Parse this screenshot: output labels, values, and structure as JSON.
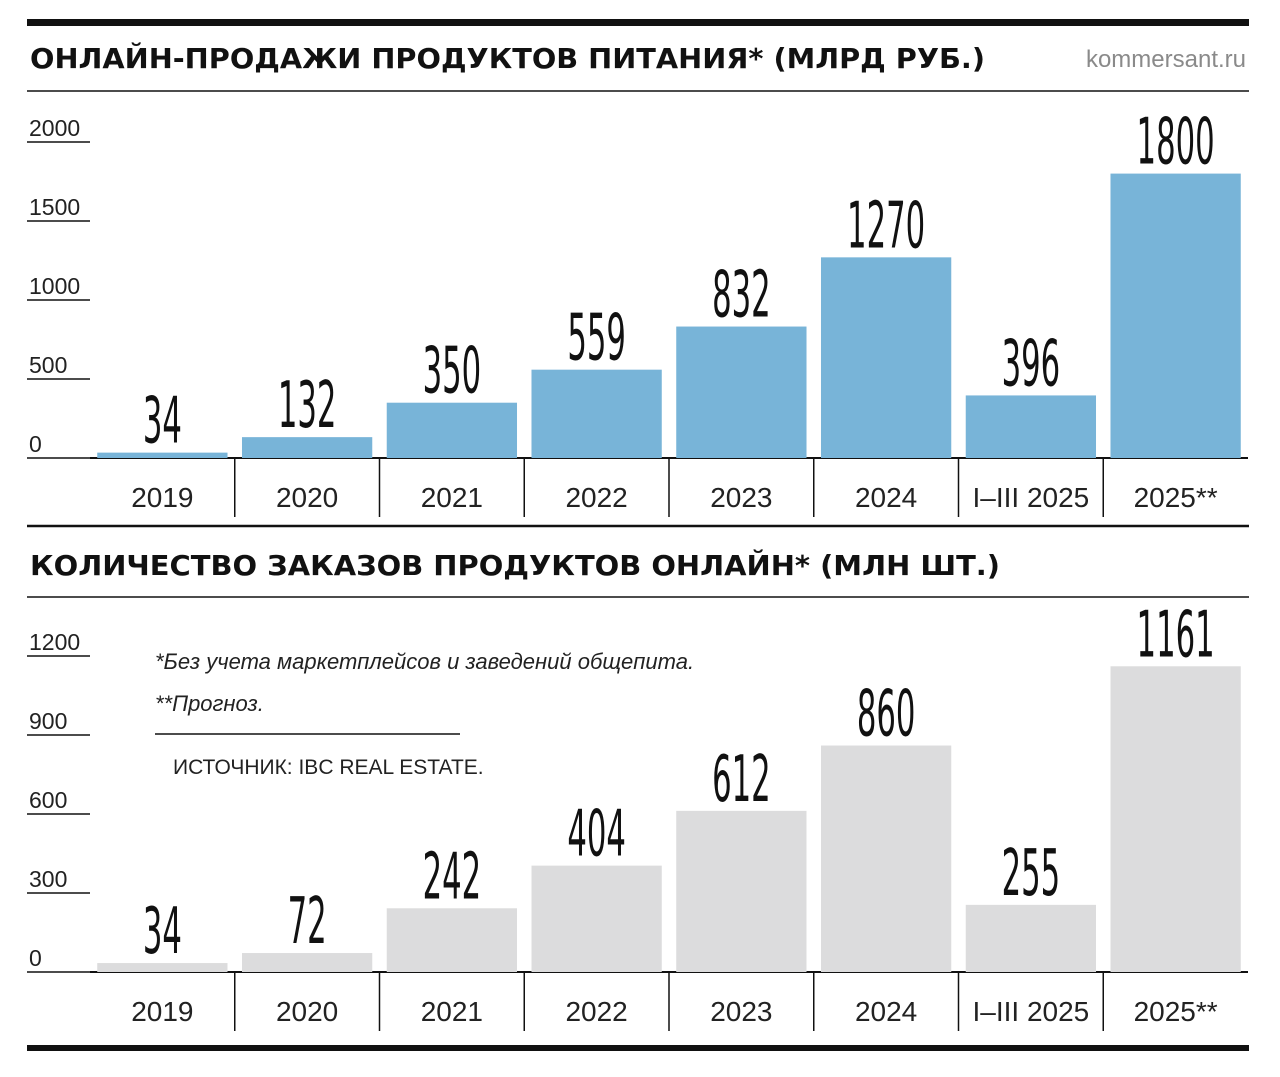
{
  "source_site": "kommersant.ru",
  "notes": [
    "*Без учета маркетплейсов и заведений общепита.",
    "**Прогноз."
  ],
  "source": "ИСТОЧНИК: IBC REAL ESTATE.",
  "chart_data": [
    {
      "type": "bar",
      "title": "ОНЛАЙН-ПРОДАЖИ ПРОДУКТОВ ПИТАНИЯ* (МЛРД РУБ.)",
      "categories": [
        "2019",
        "2020",
        "2021",
        "2022",
        "2023",
        "2024",
        "I–III 2025",
        "2025**"
      ],
      "values": [
        34,
        132,
        350,
        559,
        832,
        1270,
        396,
        1800
      ],
      "color": "#78b4d8",
      "ylim": [
        0,
        2000
      ],
      "yticks": [
        0,
        500,
        1000,
        1500,
        2000
      ]
    },
    {
      "type": "bar",
      "title": "КОЛИЧЕСТВО ЗАКАЗОВ ПРОДУКТОВ ОНЛАЙН* (МЛН ШТ.)",
      "categories": [
        "2019",
        "2020",
        "2021",
        "2022",
        "2023",
        "2024",
        "I–III 2025",
        "2025**"
      ],
      "values": [
        34,
        72,
        242,
        404,
        612,
        860,
        255,
        1161
      ],
      "color": "#dcdcdd",
      "ylim": [
        0,
        1200
      ],
      "yticks": [
        0,
        300,
        600,
        900,
        1200
      ]
    }
  ]
}
